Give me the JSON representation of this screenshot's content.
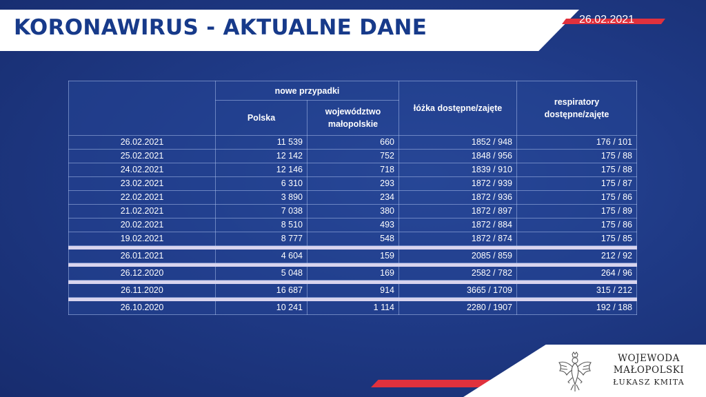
{
  "header": {
    "title": "KORONAWIRUS - AKTUALNE DANE",
    "date": "26.02.2021"
  },
  "table": {
    "group_header": "nowe przypadki",
    "columns": {
      "poland": "Polska",
      "region_line1": "województwo",
      "region_line2": "małopolskie",
      "beds": "łóżka dostępne/zajęte",
      "resp_line1": "respiratory",
      "resp_line2": "dostępne/zajęte"
    },
    "rows": [
      {
        "date": "26.02.2021",
        "poland": "11 539",
        "region": "660",
        "beds": "1852 / 948",
        "resp": "176 / 101"
      },
      {
        "date": "25.02.2021",
        "poland": "12 142",
        "region": "752",
        "beds": "1848 / 956",
        "resp": "175 / 88"
      },
      {
        "date": "24.02.2021",
        "poland": "12 146",
        "region": "718",
        "beds": "1839 / 910",
        "resp": "175 / 88"
      },
      {
        "date": "23.02.2021",
        "poland": "6 310",
        "region": "293",
        "beds": "1872 / 939",
        "resp": "175 / 87"
      },
      {
        "date": "22.02.2021",
        "poland": "3 890",
        "region": "234",
        "beds": "1872 / 936",
        "resp": "175 / 86"
      },
      {
        "date": "21.02.2021",
        "poland": "7 038",
        "region": "380",
        "beds": "1872 / 897",
        "resp": "175 / 89"
      },
      {
        "date": "20.02.2021",
        "poland": "8 510",
        "region": "493",
        "beds": "1872 / 884",
        "resp": "175 / 86"
      },
      {
        "date": "19.02.2021",
        "poland": "8 777",
        "region": "548",
        "beds": "1872 / 874",
        "resp": "175 / 85"
      },
      {
        "date": "26.01.2021",
        "poland": "4 604",
        "region": "159",
        "beds": "2085 / 859",
        "resp": "212 / 92"
      },
      {
        "date": "26.12.2020",
        "poland": "5 048",
        "region": "169",
        "beds": "2582 / 782",
        "resp": "264 / 96"
      },
      {
        "date": "26.11.2020",
        "poland": "16 687",
        "region": "914",
        "beds": "3665 / 1709",
        "resp": "315 / 212"
      },
      {
        "date": "26.10.2020",
        "poland": "10 241",
        "region": "1 114",
        "beds": "2280 / 1907",
        "resp": "192 / 188"
      }
    ]
  },
  "logo": {
    "line1": "WOJEWODA",
    "line2": "MAŁOPOLSKI",
    "line3": "ŁUKASZ KMITA",
    "emblem_icon": "polish-eagle-emblem-icon"
  },
  "colors": {
    "accent_red": "#e0313d",
    "title_blue": "#173a8a",
    "background_blue": "#1f3a86"
  }
}
